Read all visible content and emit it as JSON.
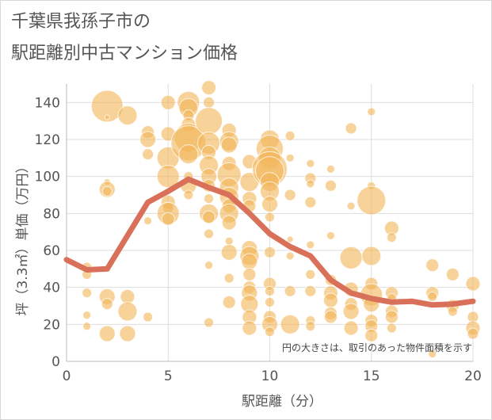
{
  "title": {
    "line1": "千葉県我孫子市の",
    "line2": "駅距離別中古マンション価格"
  },
  "chart_data": {
    "type": "scatter",
    "xlabel": "駅距離（分）",
    "ylabel": "坪（3.3㎡）単価（万円）",
    "xlim": [
      0,
      20
    ],
    "ylim": [
      0,
      150
    ],
    "xticks": [
      0,
      5,
      10,
      15,
      20
    ],
    "yticks": [
      0,
      20,
      40,
      60,
      80,
      100,
      120,
      140
    ],
    "note": "円の大きさは、取引のあった物件面積を示す",
    "colors": {
      "bubble": "#f2b65a",
      "line": "#d9705a",
      "grid": "#dddddd",
      "axis": "#bbbbbb"
    },
    "trend_line": {
      "x": [
        0,
        1,
        2,
        3,
        4,
        5,
        6,
        7,
        8,
        9,
        10,
        11,
        12,
        13,
        14,
        15,
        16,
        17,
        18,
        19,
        20
      ],
      "y": [
        55,
        49.5,
        50,
        68,
        86,
        92,
        98.5,
        94,
        90,
        80,
        69,
        62,
        57,
        44,
        37,
        34,
        32,
        32.5,
        30.5,
        31,
        32.5
      ]
    },
    "bubbles": [
      {
        "x": 1,
        "y": 51,
        "r": 6
      },
      {
        "x": 1,
        "y": 47,
        "r": 6
      },
      {
        "x": 1,
        "y": 37,
        "r": 6
      },
      {
        "x": 1,
        "y": 25,
        "r": 5
      },
      {
        "x": 1,
        "y": 19,
        "r": 5
      },
      {
        "x": 2,
        "y": 138,
        "r": 20
      },
      {
        "x": 2,
        "y": 132,
        "r": 3
      },
      {
        "x": 2,
        "y": 97,
        "r": 4
      },
      {
        "x": 2,
        "y": 93,
        "r": 10
      },
      {
        "x": 2,
        "y": 92,
        "r": 6
      },
      {
        "x": 2,
        "y": 35,
        "r": 10
      },
      {
        "x": 2,
        "y": 31,
        "r": 7
      },
      {
        "x": 2,
        "y": 15,
        "r": 10
      },
      {
        "x": 3,
        "y": 133,
        "r": 12
      },
      {
        "x": 3,
        "y": 35,
        "r": 9
      },
      {
        "x": 3,
        "y": 27,
        "r": 12
      },
      {
        "x": 3,
        "y": 15,
        "r": 10
      },
      {
        "x": 4,
        "y": 124,
        "r": 8
      },
      {
        "x": 4,
        "y": 120,
        "r": 10
      },
      {
        "x": 4,
        "y": 112,
        "r": 7
      },
      {
        "x": 4,
        "y": 76,
        "r": 5
      },
      {
        "x": 4,
        "y": 24,
        "r": 6
      },
      {
        "x": 5,
        "y": 140,
        "r": 9
      },
      {
        "x": 5,
        "y": 123,
        "r": 9
      },
      {
        "x": 5,
        "y": 110,
        "r": 14
      },
      {
        "x": 5,
        "y": 100,
        "r": 14
      },
      {
        "x": 5,
        "y": 86,
        "r": 9
      },
      {
        "x": 5,
        "y": 83,
        "r": 7
      },
      {
        "x": 5,
        "y": 80,
        "r": 14
      },
      {
        "x": 5,
        "y": 77,
        "r": 8
      },
      {
        "x": 6,
        "y": 140,
        "r": 14
      },
      {
        "x": 6,
        "y": 137,
        "r": 12
      },
      {
        "x": 6,
        "y": 133,
        "r": 7
      },
      {
        "x": 6,
        "y": 128,
        "r": 9
      },
      {
        "x": 6,
        "y": 121,
        "r": 18
      },
      {
        "x": 6,
        "y": 118,
        "r": 22
      },
      {
        "x": 6,
        "y": 112,
        "r": 12
      },
      {
        "x": 6,
        "y": 100,
        "r": 6
      },
      {
        "x": 6,
        "y": 95,
        "r": 10
      },
      {
        "x": 6,
        "y": 90,
        "r": 6
      },
      {
        "x": 7,
        "y": 148,
        "r": 9
      },
      {
        "x": 7,
        "y": 140,
        "r": 7
      },
      {
        "x": 7,
        "y": 130,
        "r": 17
      },
      {
        "x": 7,
        "y": 118,
        "r": 14
      },
      {
        "x": 7,
        "y": 113,
        "r": 9
      },
      {
        "x": 7,
        "y": 106,
        "r": 12
      },
      {
        "x": 7,
        "y": 100,
        "r": 10
      },
      {
        "x": 7,
        "y": 95,
        "r": 8
      },
      {
        "x": 7,
        "y": 88,
        "r": 6
      },
      {
        "x": 7,
        "y": 80,
        "r": 12
      },
      {
        "x": 7,
        "y": 78,
        "r": 8
      },
      {
        "x": 7,
        "y": 69,
        "r": 6
      },
      {
        "x": 7,
        "y": 52,
        "r": 5
      },
      {
        "x": 7,
        "y": 21,
        "r": 6
      },
      {
        "x": 8,
        "y": 125,
        "r": 9
      },
      {
        "x": 8,
        "y": 119,
        "r": 12
      },
      {
        "x": 8,
        "y": 117,
        "r": 10
      },
      {
        "x": 8,
        "y": 107,
        "r": 9
      },
      {
        "x": 8,
        "y": 101,
        "r": 15
      },
      {
        "x": 8,
        "y": 94,
        "r": 12
      },
      {
        "x": 8,
        "y": 89,
        "r": 12
      },
      {
        "x": 8,
        "y": 84,
        "r": 9
      },
      {
        "x": 8,
        "y": 80,
        "r": 12
      },
      {
        "x": 8,
        "y": 75,
        "r": 9
      },
      {
        "x": 8,
        "y": 65,
        "r": 5
      },
      {
        "x": 8,
        "y": 59,
        "r": 10
      },
      {
        "x": 8,
        "y": 45,
        "r": 6
      },
      {
        "x": 8,
        "y": 32,
        "r": 8
      },
      {
        "x": 9,
        "y": 108,
        "r": 9
      },
      {
        "x": 9,
        "y": 97,
        "r": 12
      },
      {
        "x": 9,
        "y": 88,
        "r": 9
      },
      {
        "x": 9,
        "y": 84,
        "r": 8
      },
      {
        "x": 9,
        "y": 61,
        "r": 10
      },
      {
        "x": 9,
        "y": 57,
        "r": 12
      },
      {
        "x": 9,
        "y": 54,
        "r": 10
      },
      {
        "x": 9,
        "y": 47,
        "r": 8
      },
      {
        "x": 9,
        "y": 40,
        "r": 8
      },
      {
        "x": 9,
        "y": 37,
        "r": 10
      },
      {
        "x": 9,
        "y": 31,
        "r": 11
      },
      {
        "x": 9,
        "y": 24,
        "r": 9
      },
      {
        "x": 9,
        "y": 18,
        "r": 9
      },
      {
        "x": 10,
        "y": 120,
        "r": 12
      },
      {
        "x": 10,
        "y": 115,
        "r": 17
      },
      {
        "x": 10,
        "y": 110,
        "r": 14
      },
      {
        "x": 10,
        "y": 104,
        "r": 22
      },
      {
        "x": 10,
        "y": 103,
        "r": 18
      },
      {
        "x": 10,
        "y": 97,
        "r": 12
      },
      {
        "x": 10,
        "y": 92,
        "r": 12
      },
      {
        "x": 10,
        "y": 85,
        "r": 10
      },
      {
        "x": 10,
        "y": 78,
        "r": 6
      },
      {
        "x": 10,
        "y": 59,
        "r": 7
      },
      {
        "x": 10,
        "y": 42,
        "r": 8
      },
      {
        "x": 10,
        "y": 38,
        "r": 6
      },
      {
        "x": 10,
        "y": 32,
        "r": 6
      },
      {
        "x": 10,
        "y": 24,
        "r": 8
      },
      {
        "x": 10,
        "y": 20,
        "r": 10
      },
      {
        "x": 10,
        "y": 16,
        "r": 6
      },
      {
        "x": 11,
        "y": 122,
        "r": 6
      },
      {
        "x": 11,
        "y": 110,
        "r": 5
      },
      {
        "x": 11,
        "y": 90,
        "r": 7
      },
      {
        "x": 11,
        "y": 66,
        "r": 4
      },
      {
        "x": 11,
        "y": 57,
        "r": 5
      },
      {
        "x": 11,
        "y": 38,
        "r": 7
      },
      {
        "x": 11,
        "y": 20,
        "r": 12
      },
      {
        "x": 12,
        "y": 107,
        "r": 5
      },
      {
        "x": 12,
        "y": 99,
        "r": 7
      },
      {
        "x": 12,
        "y": 96,
        "r": 5
      },
      {
        "x": 12,
        "y": 86,
        "r": 7
      },
      {
        "x": 12,
        "y": 63,
        "r": 5
      },
      {
        "x": 12,
        "y": 47,
        "r": 6
      },
      {
        "x": 12,
        "y": 38,
        "r": 7
      },
      {
        "x": 12,
        "y": 22,
        "r": 6
      },
      {
        "x": 12,
        "y": 19,
        "r": 6
      },
      {
        "x": 13,
        "y": 104,
        "r": 5
      },
      {
        "x": 13,
        "y": 95,
        "r": 7
      },
      {
        "x": 13,
        "y": 68,
        "r": 5
      },
      {
        "x": 13,
        "y": 44,
        "r": 7
      },
      {
        "x": 13,
        "y": 37,
        "r": 9
      },
      {
        "x": 13,
        "y": 33,
        "r": 9
      },
      {
        "x": 13,
        "y": 26,
        "r": 8
      },
      {
        "x": 13,
        "y": 24,
        "r": 8
      },
      {
        "x": 14,
        "y": 126,
        "r": 7
      },
      {
        "x": 14,
        "y": 84,
        "r": 5
      },
      {
        "x": 14,
        "y": 56,
        "r": 14
      },
      {
        "x": 14,
        "y": 39,
        "r": 9
      },
      {
        "x": 14,
        "y": 31,
        "r": 8
      },
      {
        "x": 14,
        "y": 27,
        "r": 10
      },
      {
        "x": 14,
        "y": 18,
        "r": 9
      },
      {
        "x": 15,
        "y": 135,
        "r": 5
      },
      {
        "x": 15,
        "y": 95,
        "r": 5
      },
      {
        "x": 15,
        "y": 87,
        "r": 18
      },
      {
        "x": 15,
        "y": 57,
        "r": 12
      },
      {
        "x": 15,
        "y": 42,
        "r": 8
      },
      {
        "x": 15,
        "y": 36,
        "r": 14
      },
      {
        "x": 15,
        "y": 31,
        "r": 10
      },
      {
        "x": 15,
        "y": 22,
        "r": 8
      },
      {
        "x": 15,
        "y": 19,
        "r": 8
      },
      {
        "x": 15,
        "y": 14,
        "r": 8
      },
      {
        "x": 16,
        "y": 72,
        "r": 9
      },
      {
        "x": 16,
        "y": 67,
        "r": 6
      },
      {
        "x": 16,
        "y": 37,
        "r": 8
      },
      {
        "x": 16,
        "y": 34,
        "r": 6
      },
      {
        "x": 16,
        "y": 27,
        "r": 8
      },
      {
        "x": 16,
        "y": 24,
        "r": 8
      },
      {
        "x": 16,
        "y": 18,
        "r": 6
      },
      {
        "x": 18,
        "y": 52,
        "r": 8
      },
      {
        "x": 18,
        "y": 37,
        "r": 8
      },
      {
        "x": 18,
        "y": 35,
        "r": 6
      },
      {
        "x": 18,
        "y": 4,
        "r": 5
      },
      {
        "x": 19,
        "y": 47,
        "r": 8
      },
      {
        "x": 19,
        "y": 30,
        "r": 8
      },
      {
        "x": 19,
        "y": 27,
        "r": 6
      },
      {
        "x": 20,
        "y": 42,
        "r": 9
      },
      {
        "x": 20,
        "y": 24,
        "r": 7
      },
      {
        "x": 20,
        "y": 18,
        "r": 9
      },
      {
        "x": 20,
        "y": 15,
        "r": 7
      }
    ]
  }
}
